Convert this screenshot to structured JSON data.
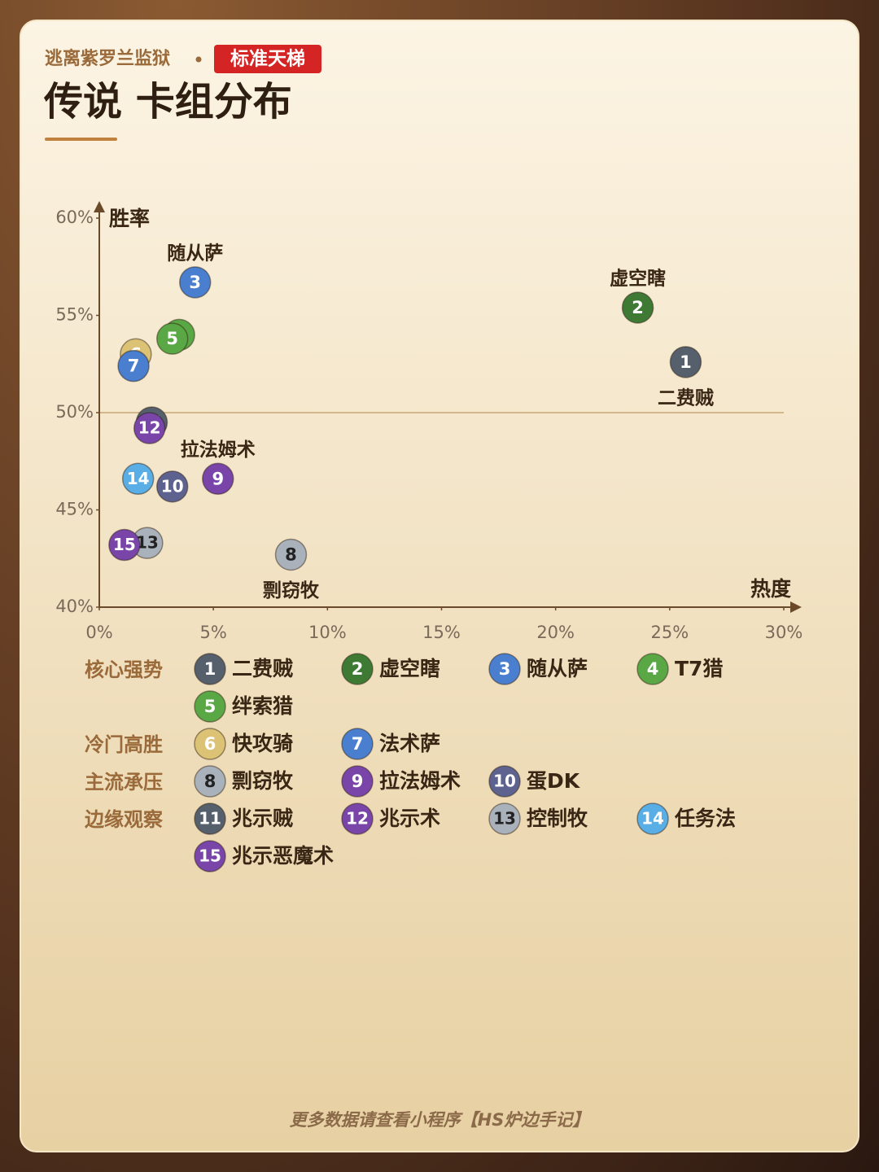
{
  "header": {
    "subtitle": "逃离紫罗兰监狱",
    "badge": "标准天梯",
    "title": "传说 卡组分布"
  },
  "chart_data": {
    "type": "scatter",
    "x_label": "热度",
    "y_label": "胜率",
    "xlim": [
      0,
      30
    ],
    "ylim": [
      40,
      60
    ],
    "xticks": [
      {
        "value": 0,
        "label": "0%"
      },
      {
        "value": 5,
        "label": "5%"
      },
      {
        "value": 10,
        "label": "10%"
      },
      {
        "value": 15,
        "label": "15%"
      },
      {
        "value": 20,
        "label": "20%"
      },
      {
        "value": 25,
        "label": "25%"
      },
      {
        "value": 30,
        "label": "30%"
      }
    ],
    "yticks": [
      {
        "value": 40,
        "label": "40%"
      },
      {
        "value": 45,
        "label": "45%"
      },
      {
        "value": 50,
        "label": "50%"
      },
      {
        "value": 55,
        "label": "55%"
      },
      {
        "value": 60,
        "label": "60%"
      }
    ],
    "hline": 50,
    "series": [
      {
        "name": "核心强势",
        "points": [
          {
            "id": 1,
            "name": "二费贼",
            "color": "#56606c",
            "x": 25.7,
            "y": 52.6,
            "labeled": true
          },
          {
            "id": 2,
            "name": "虚空瞎",
            "color": "#3f7a35",
            "x": 23.6,
            "y": 55.4,
            "labeled": true
          },
          {
            "id": 3,
            "name": "随从萨",
            "color": "#4a7fd0",
            "x": 4.2,
            "y": 56.7,
            "labeled": true
          },
          {
            "id": 4,
            "name": "T7猎",
            "color": "#5aa845",
            "x": 3.5,
            "y": 54.0
          },
          {
            "id": 5,
            "name": "绊索猎",
            "color": "#5aa845",
            "x": 3.2,
            "y": 53.8
          }
        ]
      },
      {
        "name": "冷门高胜",
        "points": [
          {
            "id": 6,
            "name": "快攻骑",
            "color": "#dcc274",
            "x": 1.6,
            "y": 53.0
          },
          {
            "id": 7,
            "name": "法术萨",
            "color": "#4a7fd0",
            "x": 1.5,
            "y": 52.4
          }
        ]
      },
      {
        "name": "主流承压",
        "points": [
          {
            "id": 8,
            "name": "剽窃牧",
            "color": "#a9b1bb",
            "x": 8.4,
            "y": 42.7,
            "labeled": true
          },
          {
            "id": 9,
            "name": "拉法姆术",
            "color": "#7a45a8",
            "x": 5.2,
            "y": 46.6,
            "labeled": true
          },
          {
            "id": 10,
            "name": "蛋DK",
            "color": "#5d628f",
            "x": 3.2,
            "y": 46.2
          }
        ]
      },
      {
        "name": "边缘观察",
        "points": [
          {
            "id": 11,
            "name": "兆示贼",
            "color": "#56606c",
            "x": 2.3,
            "y": 49.5
          },
          {
            "id": 12,
            "name": "兆示术",
            "color": "#7a45a8",
            "x": 2.2,
            "y": 49.2
          },
          {
            "id": 13,
            "name": "控制牧",
            "color": "#a9b1bb",
            "x": 2.1,
            "y": 43.3
          },
          {
            "id": 14,
            "name": "任务法",
            "color": "#5aaee6",
            "x": 1.7,
            "y": 46.6
          },
          {
            "id": 15,
            "name": "兆示恶魔术",
            "color": "#7a45a8",
            "x": 1.1,
            "y": 43.2
          }
        ]
      }
    ]
  },
  "footer": "更多数据请查看小程序【HS炉边手记】"
}
